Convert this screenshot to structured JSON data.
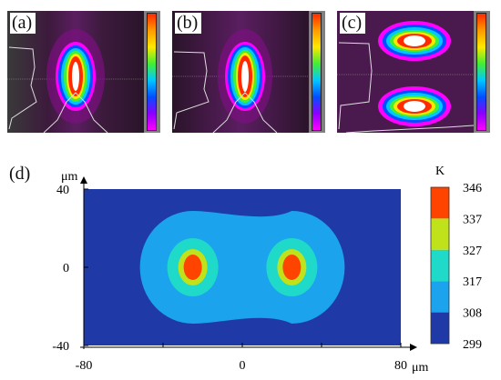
{
  "panels": [
    {
      "label": "(a)"
    },
    {
      "label": "(b)"
    },
    {
      "label": "(c)"
    }
  ],
  "main_label": "(d)",
  "chart_data": {
    "type": "heatmap",
    "xlabel": "μm",
    "ylabel": "μm",
    "colorbar_label": "K",
    "xlim": [
      -80,
      80
    ],
    "ylim": [
      -40,
      40
    ],
    "x_ticks": [
      "-80",
      "0",
      "80"
    ],
    "y_ticks": [
      "40",
      "0",
      "-40"
    ],
    "colorbar_ticks": [
      "346",
      "337",
      "327",
      "317",
      "308",
      "299"
    ],
    "colorbar_colors": [
      "#ff4400",
      "#bfe21a",
      "#1fd9c9",
      "#1ba3ee",
      "#1f3aa6"
    ],
    "background_color": "#1f3aa6",
    "hot_spots": [
      {
        "x": -25,
        "y": 0
      },
      {
        "x": 25,
        "y": 0
      }
    ]
  }
}
